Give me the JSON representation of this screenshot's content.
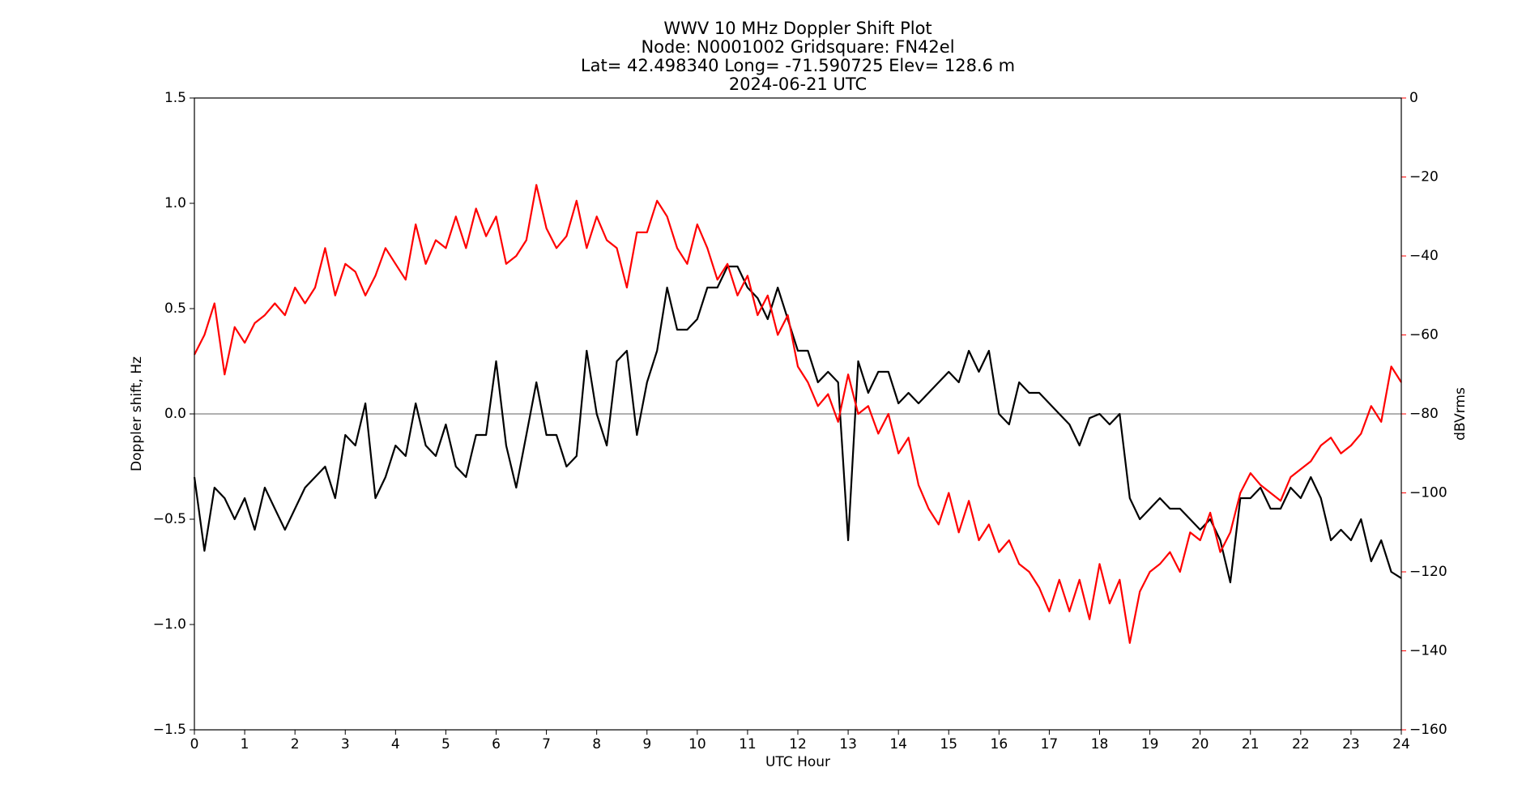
{
  "chart_data": {
    "type": "line",
    "title_lines": [
      "WWV 10 MHz Doppler Shift Plot",
      "Node:  N0001002     Gridsquare:  FN42el",
      "Lat= 42.498340    Long= -71.590725    Elev= 128.6 m",
      "2024-06-21  UTC"
    ],
    "x_label": "UTC Hour",
    "y_label": "Doppler shift, Hz",
    "y2_label": "dBVrms",
    "y2_color": "#ff0000",
    "reference_line": 0,
    "xlim": [
      0,
      24
    ],
    "xticks": [
      0,
      1,
      2,
      3,
      4,
      5,
      6,
      7,
      8,
      9,
      10,
      11,
      12,
      13,
      14,
      15,
      16,
      17,
      18,
      19,
      20,
      21,
      22,
      23,
      24
    ],
    "ylim": [
      -1.5,
      1.5
    ],
    "yticks": [
      {
        "value": -1.5,
        "label": "−1.5"
      },
      {
        "value": -1.0,
        "label": "−1.0"
      },
      {
        "value": -0.5,
        "label": "−0.5"
      },
      {
        "value": 0,
        "label": "0.0"
      },
      0.5,
      {
        "value": 1.0,
        "label": "1.0"
      },
      1.5
    ],
    "y2lim": [
      -160,
      0
    ],
    "y2ticks": [
      {
        "value": -160,
        "label": "−160"
      },
      {
        "value": -140,
        "label": "−140"
      },
      {
        "value": -120,
        "label": "−120"
      },
      {
        "value": -100,
        "label": "−100"
      },
      {
        "value": -80,
        "label": "−80"
      },
      {
        "value": -60,
        "label": "−60"
      },
      {
        "value": -40,
        "label": "−40"
      },
      {
        "value": -20,
        "label": "−20"
      },
      0
    ],
    "x": [
      0,
      0.2,
      0.4,
      0.6,
      0.8,
      1,
      1.2,
      1.4,
      1.6,
      1.8,
      2,
      2.2,
      2.4,
      2.6,
      2.8,
      3,
      3.2,
      3.4,
      3.6,
      3.8,
      4,
      4.2,
      4.4,
      4.6,
      4.8,
      5,
      5.2,
      5.4,
      5.6,
      5.8,
      6,
      6.2,
      6.4,
      6.6,
      6.8,
      7,
      7.2,
      7.4,
      7.6,
      7.8,
      8,
      8.2,
      8.4,
      8.6,
      8.8,
      9,
      9.2,
      9.4,
      9.6,
      9.8,
      10,
      10.2,
      10.4,
      10.6,
      10.8,
      11,
      11.2,
      11.4,
      11.6,
      11.8,
      12,
      12.2,
      12.4,
      12.6,
      12.8,
      13,
      13.2,
      13.4,
      13.6,
      13.8,
      14,
      14.2,
      14.4,
      14.6,
      14.8,
      15,
      15.2,
      15.4,
      15.6,
      15.8,
      16,
      16.2,
      16.4,
      16.6,
      16.8,
      17,
      17.2,
      17.4,
      17.6,
      17.8,
      18,
      18.2,
      18.4,
      18.6,
      18.8,
      19,
      19.2,
      19.4,
      19.6,
      19.8,
      20,
      20.2,
      20.4,
      20.6,
      20.8,
      21,
      21.2,
      21.4,
      21.6,
      21.8,
      22,
      22.2,
      22.4,
      22.6,
      22.8,
      23,
      23.2,
      23.4,
      23.6,
      23.8,
      24
    ],
    "series": [
      {
        "color": "#000000",
        "values": [
          -0.3,
          -0.65,
          -0.35,
          -0.4,
          -0.5,
          -0.4,
          -0.55,
          -0.35,
          -0.45,
          -0.55,
          -0.45,
          -0.35,
          -0.3,
          -0.25,
          -0.4,
          -0.1,
          -0.15,
          0.05,
          -0.4,
          -0.3,
          -0.15,
          -0.2,
          0.05,
          -0.15,
          -0.2,
          -0.05,
          -0.25,
          -0.3,
          -0.1,
          -0.1,
          0.25,
          -0.15,
          -0.35,
          -0.1,
          0.15,
          -0.1,
          -0.1,
          -0.25,
          -0.2,
          0.3,
          0.0,
          -0.15,
          0.25,
          0.3,
          -0.1,
          0.15,
          0.3,
          0.6,
          0.4,
          0.4,
          0.45,
          0.6,
          0.6,
          0.7,
          0.7,
          0.6,
          0.55,
          0.45,
          0.6,
          0.45,
          0.3,
          0.3,
          0.15,
          0.2,
          0.15,
          -0.6,
          0.25,
          0.1,
          0.2,
          0.2,
          0.05,
          0.1,
          0.05,
          0.1,
          0.15,
          0.2,
          0.15,
          0.3,
          0.2,
          0.3,
          0.0,
          -0.05,
          0.15,
          0.1,
          0.1,
          0.05,
          0.0,
          -0.05,
          -0.15,
          -0.02,
          0.0,
          -0.05,
          0.0,
          -0.4,
          -0.5,
          -0.45,
          -0.4,
          -0.45,
          -0.45,
          -0.5,
          -0.55,
          -0.5,
          -0.6,
          -0.8,
          -0.4,
          -0.4,
          -0.35,
          -0.45,
          -0.45,
          -0.35,
          -0.4,
          -0.3,
          -0.4,
          -0.6,
          -0.55,
          -0.6,
          -0.5,
          -0.7,
          -0.6,
          -0.75,
          -0.78
        ]
      },
      {
        "color": "#ff0000",
        "axis": "y2",
        "values": [
          -65,
          -60,
          -52,
          -70,
          -58,
          -62,
          -57,
          -55,
          -52,
          -55,
          -48,
          -52,
          -48,
          -38,
          -50,
          -42,
          -44,
          -50,
          -45,
          -38,
          -42,
          -46,
          -32,
          -42,
          -36,
          -38,
          -30,
          -38,
          -28,
          -35,
          -30,
          -42,
          -40,
          -36,
          -22,
          -33,
          -38,
          -35,
          -26,
          -38,
          -30,
          -36,
          -38,
          -48,
          -34,
          -34,
          -26,
          -30,
          -38,
          -42,
          -32,
          -38,
          -46,
          -42,
          -50,
          -45,
          -55,
          -50,
          -60,
          -55,
          -68,
          -72,
          -78,
          -75,
          -82,
          -70,
          -80,
          -78,
          -85,
          -80,
          -90,
          -86,
          -98,
          -104,
          -108,
          -100,
          -110,
          -102,
          -112,
          -108,
          -115,
          -112,
          -118,
          -120,
          -124,
          -130,
          -122,
          -130,
          -122,
          -132,
          -118,
          -128,
          -122,
          -138,
          -125,
          -120,
          -118,
          -115,
          -120,
          -110,
          -112,
          -105,
          -115,
          -110,
          -100,
          -95,
          -98,
          -100,
          -102,
          -96,
          -94,
          -92,
          -88,
          -86,
          -90,
          -88,
          -85,
          -78,
          -82,
          -68,
          -72
        ]
      }
    ]
  }
}
